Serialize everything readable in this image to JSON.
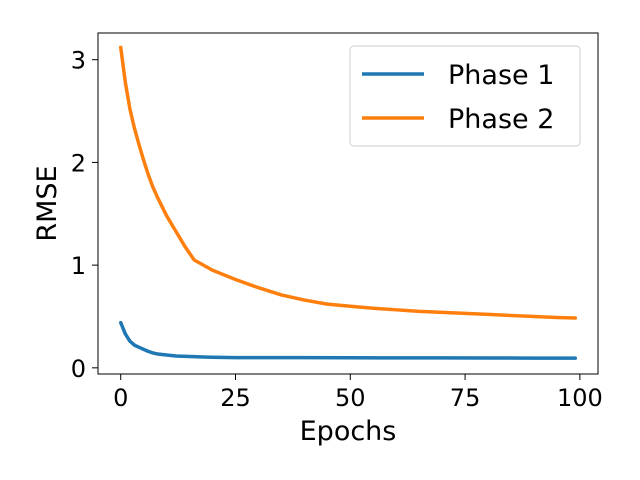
{
  "chart_data": {
    "type": "line",
    "title": "",
    "xlabel": "Epochs",
    "ylabel": "RMSE",
    "xlim": [
      -4.95,
      103.95
    ],
    "ylim": [
      -0.06,
      3.26
    ],
    "xticks": [
      0,
      25,
      50,
      75,
      100
    ],
    "yticks": [
      0,
      1,
      2,
      3
    ],
    "xtick_labels": [
      "0",
      "25",
      "50",
      "75",
      "100"
    ],
    "ytick_labels": [
      "0",
      "1",
      "2",
      "3"
    ],
    "grid": false,
    "legend_position": "top-right",
    "series": [
      {
        "name": "Phase 1",
        "color": "#1f77b4",
        "x": [
          0,
          1,
          2,
          3,
          4,
          5,
          6,
          7,
          8,
          10,
          12,
          15,
          18,
          20,
          25,
          30,
          40,
          50,
          60,
          70,
          80,
          90,
          99
        ],
        "values": [
          0.44,
          0.33,
          0.26,
          0.22,
          0.2,
          0.18,
          0.16,
          0.145,
          0.135,
          0.125,
          0.115,
          0.11,
          0.105,
          0.103,
          0.1,
          0.1,
          0.099,
          0.098,
          0.097,
          0.097,
          0.096,
          0.095,
          0.095
        ]
      },
      {
        "name": "Phase 2",
        "color": "#ff7f0e",
        "x": [
          0,
          1,
          2,
          3,
          4,
          5,
          6,
          7,
          8,
          9,
          10,
          12,
          14,
          16,
          18,
          20,
          25,
          30,
          35,
          40,
          45,
          50,
          55,
          60,
          65,
          70,
          75,
          80,
          85,
          90,
          95,
          99
        ],
        "values": [
          3.12,
          2.78,
          2.52,
          2.33,
          2.17,
          2.02,
          1.88,
          1.76,
          1.66,
          1.57,
          1.48,
          1.33,
          1.18,
          1.05,
          1.0,
          0.95,
          0.86,
          0.78,
          0.71,
          0.66,
          0.62,
          0.6,
          0.58,
          0.565,
          0.55,
          0.54,
          0.53,
          0.52,
          0.51,
          0.5,
          0.49,
          0.485
        ]
      }
    ]
  }
}
